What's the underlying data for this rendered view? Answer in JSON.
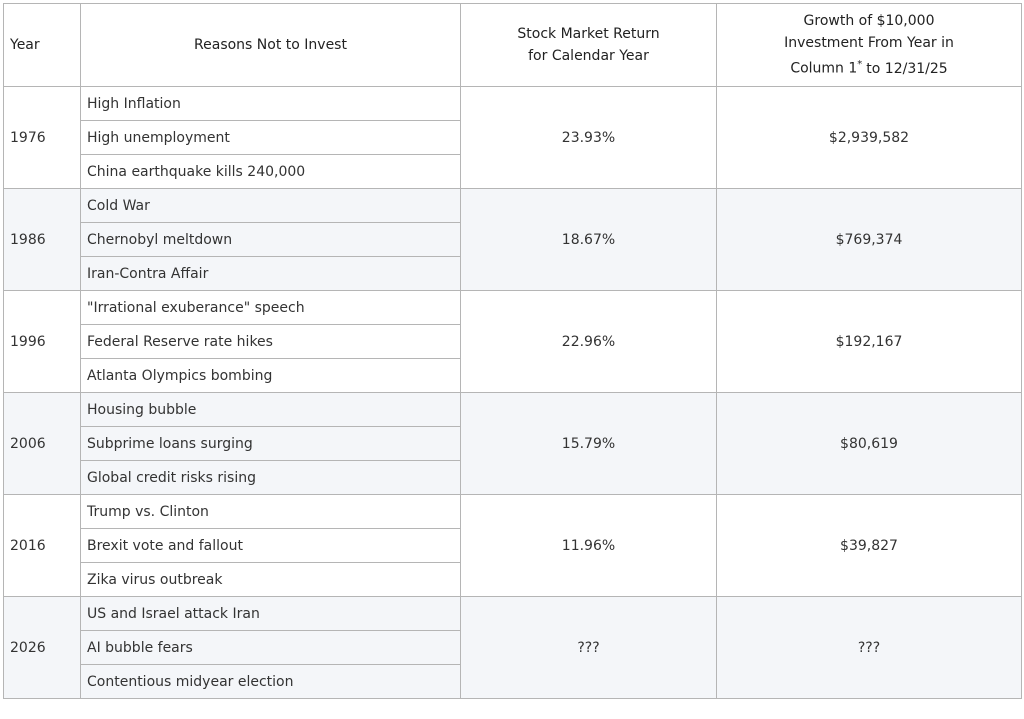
{
  "header": {
    "year": "Year",
    "reasons": "Reasons Not to Invest",
    "return": [
      "Stock Market Return",
      "for Calendar Year"
    ],
    "growth": [
      "Growth of $10,000",
      "Investment From Year in",
      "Column 1"
    ],
    "growth_sup": "*",
    "growth_tail": "to 12/31/25"
  },
  "table": {
    "rows": [
      {
        "year": "1976",
        "reasons": [
          "High Inflation",
          "High unemployment",
          "China earthquake kills 240,000"
        ],
        "return": "23.93%",
        "growth": "$2,939,582"
      },
      {
        "year": "1986",
        "reasons": [
          "Cold War",
          "Chernobyl meltdown",
          "Iran-Contra Affair"
        ],
        "return": "18.67%",
        "growth": "$769,374"
      },
      {
        "year": "1996",
        "reasons": [
          "\"Irrational exuberance\" speech",
          "Federal Reserve rate hikes",
          "Atlanta Olympics bombing"
        ],
        "return": "22.96%",
        "growth": "$192,167"
      },
      {
        "year": "2006",
        "reasons": [
          "Housing bubble",
          "Subprime loans surging",
          "Global credit risks rising"
        ],
        "return": "15.79%",
        "growth": "$80,619"
      },
      {
        "year": "2016",
        "reasons": [
          "Trump vs. Clinton",
          "Brexit vote and fallout",
          "Zika virus outbreak"
        ],
        "return": "11.96%",
        "growth": "$39,827"
      },
      {
        "year": "2026",
        "reasons": [
          "US and Israel attack Iran",
          "AI bubble fears",
          "Contentious midyear election"
        ],
        "return": "???",
        "growth": "???"
      }
    ]
  }
}
